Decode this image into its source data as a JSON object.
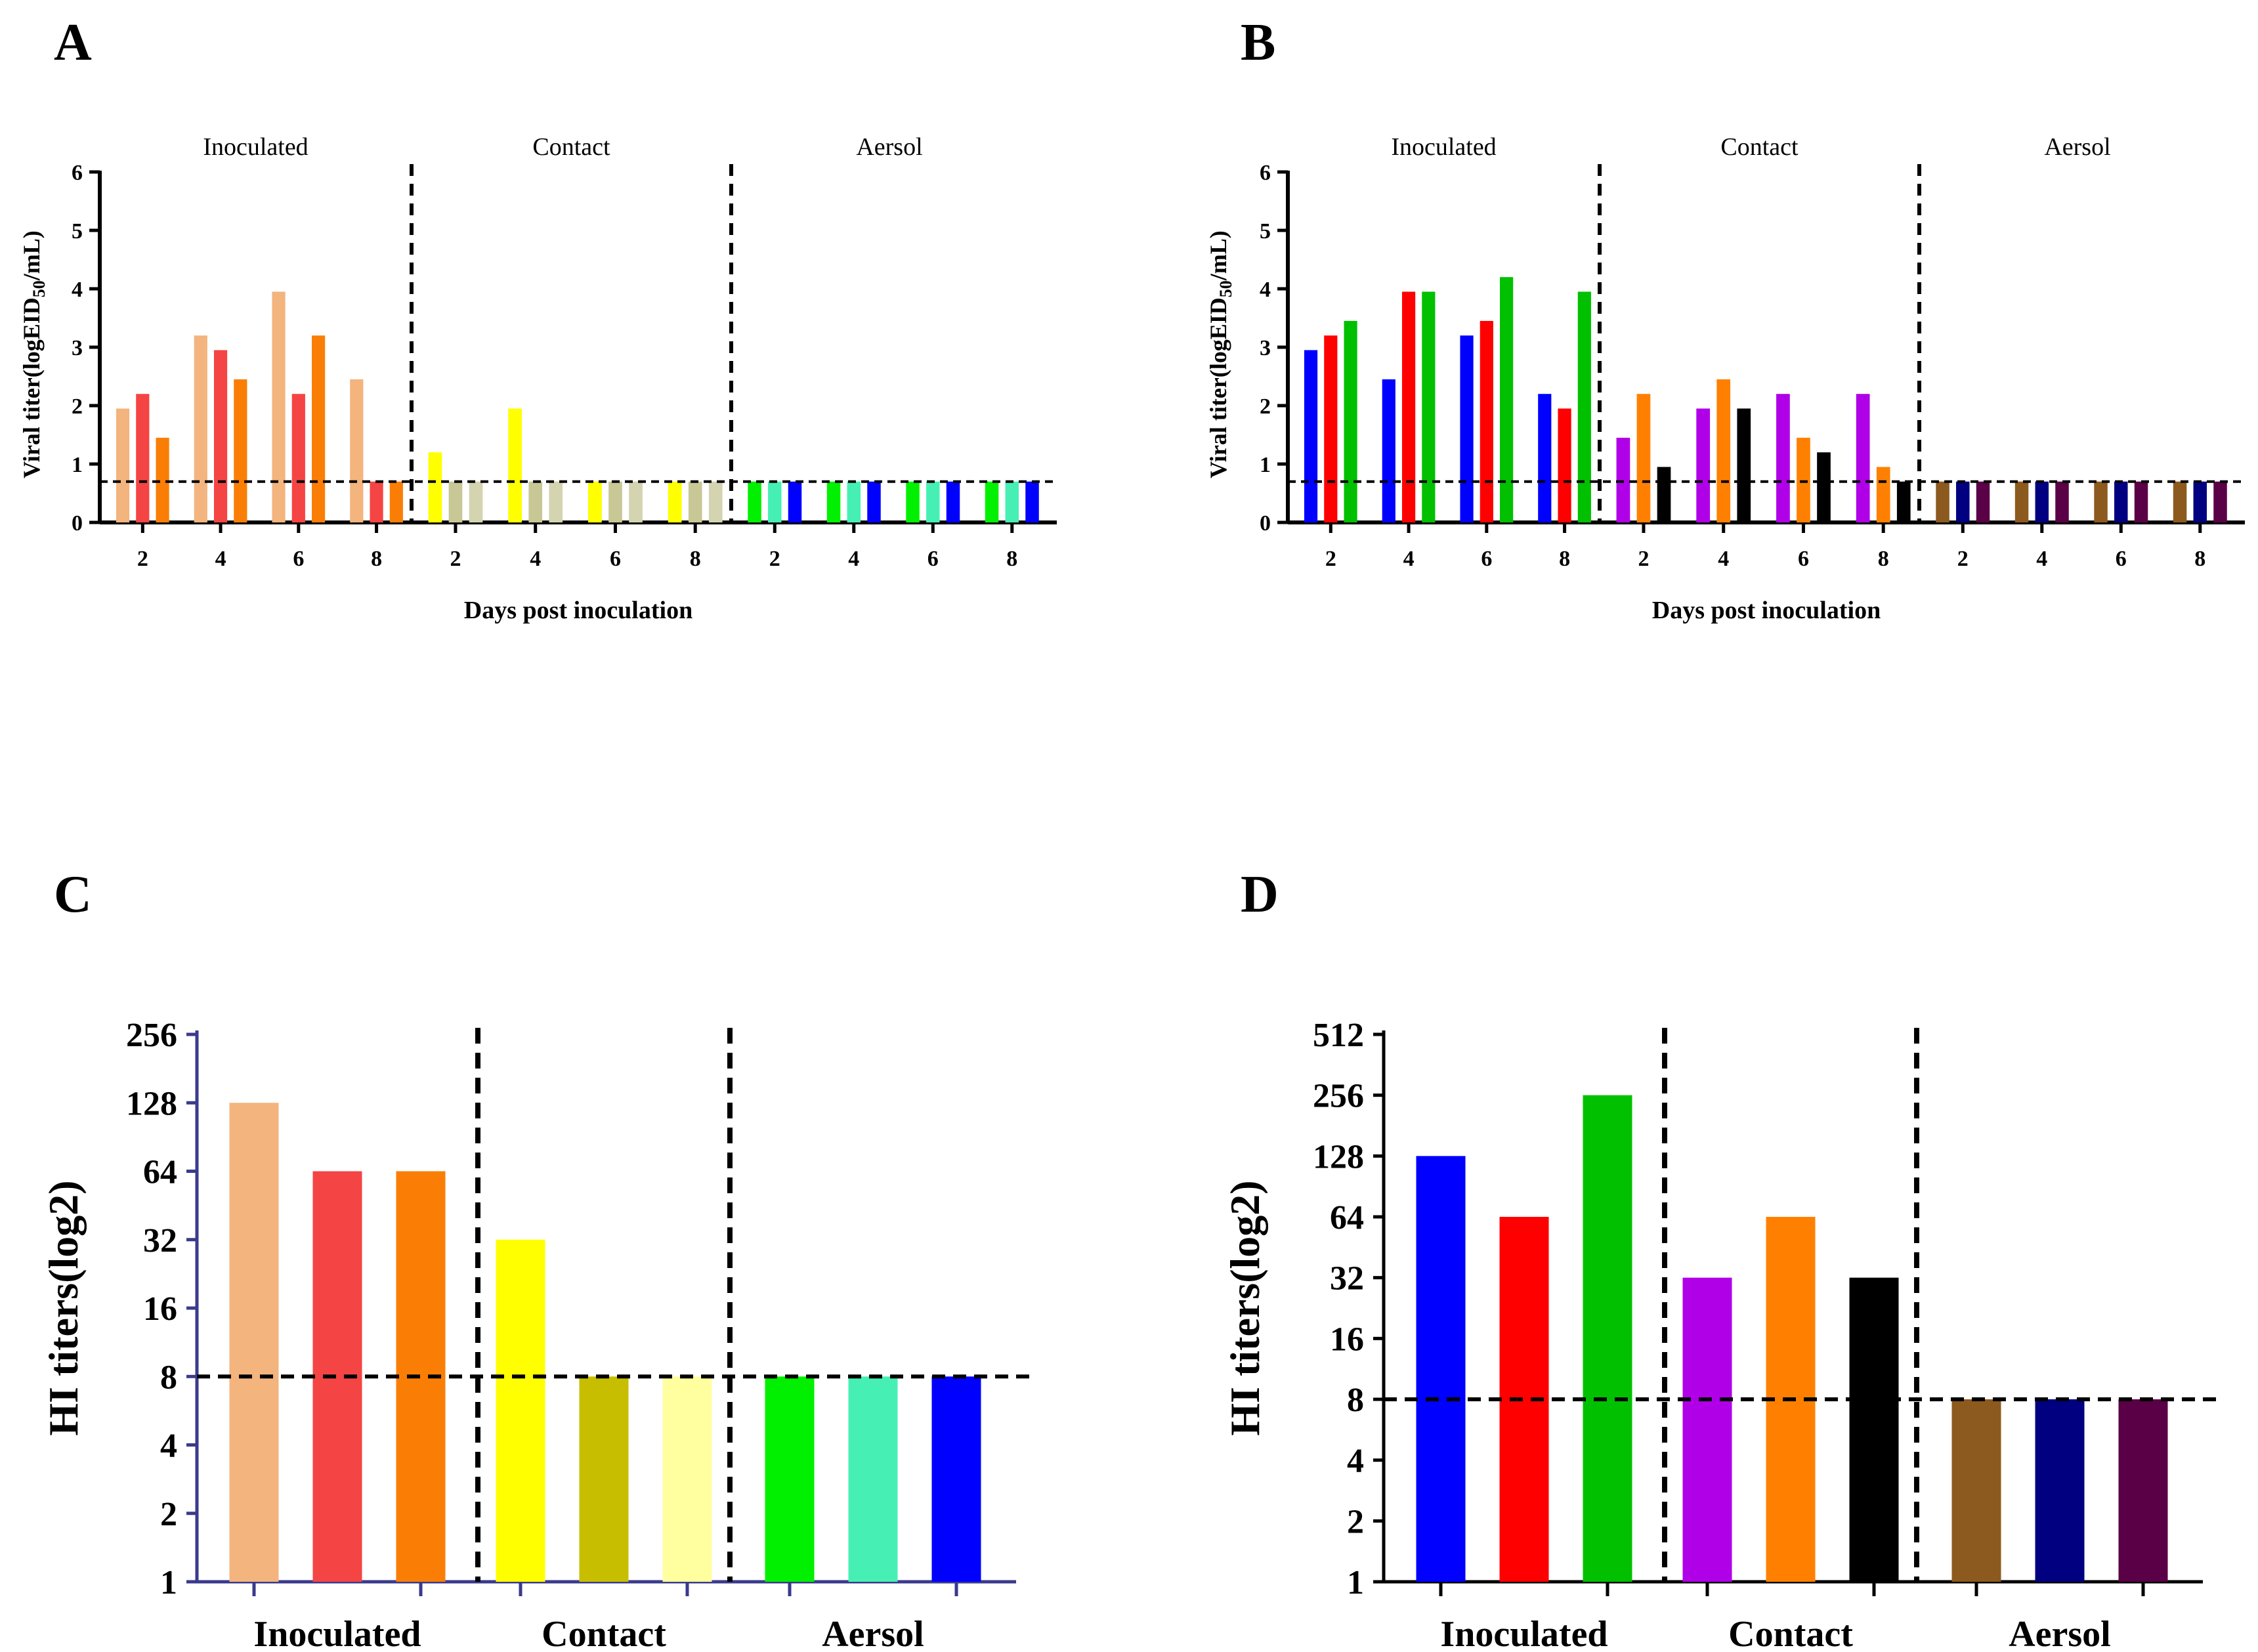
{
  "panel_labels": [
    "A",
    "B",
    "C",
    "D"
  ],
  "chart_data": [
    {
      "id": "A",
      "type": "bar",
      "ylabel": "Viral titer(logEID50/mL)",
      "xlabel": "Days post inoculation",
      "ylim": [
        0,
        6
      ],
      "yticks": [
        "0",
        "1",
        "2",
        "3",
        "4",
        "5",
        "6"
      ],
      "threshold": 0.7,
      "groups": [
        {
          "name": "Inoculated",
          "days": [
            "2",
            "4",
            "6",
            "8"
          ],
          "series": [
            {
              "color": "#F3B47E",
              "values": [
                1.95,
                3.2,
                3.95,
                2.45
              ]
            },
            {
              "color": "#F54444",
              "values": [
                2.2,
                2.95,
                2.2,
                0.7
              ]
            },
            {
              "color": "#FA7E06",
              "values": [
                1.45,
                2.45,
                3.2,
                0.7
              ]
            }
          ]
        },
        {
          "name": "Contact",
          "days": [
            "2",
            "4",
            "6",
            "8"
          ],
          "series": [
            {
              "color": "#FFFF00",
              "values": [
                1.2,
                1.95,
                0.7,
                0.7
              ]
            },
            {
              "color": "#C8C896",
              "values": [
                0.7,
                0.7,
                0.7,
                0.7
              ]
            },
            {
              "color": "#D4D4B0",
              "values": [
                0.7,
                0.7,
                0.7,
                0.7
              ]
            }
          ]
        },
        {
          "name": "Aersol",
          "days": [
            "2",
            "4",
            "6",
            "8"
          ],
          "series": [
            {
              "color": "#00F000",
              "values": [
                0.7,
                0.7,
                0.7,
                0.7
              ]
            },
            {
              "color": "#46F0B4",
              "values": [
                0.7,
                0.7,
                0.7,
                0.7
              ]
            },
            {
              "color": "#0000FF",
              "values": [
                0.7,
                0.7,
                0.7,
                0.7
              ]
            }
          ]
        }
      ]
    },
    {
      "id": "B",
      "type": "bar",
      "ylabel": "Viral titer(logEID50/mL)",
      "xlabel": "Days post inoculation",
      "ylim": [
        0,
        6
      ],
      "yticks": [
        "0",
        "1",
        "2",
        "3",
        "4",
        "5",
        "6"
      ],
      "threshold": 0.7,
      "groups": [
        {
          "name": "Inoculated",
          "days": [
            "2",
            "4",
            "6",
            "8"
          ],
          "series": [
            {
              "color": "#0000FF",
              "values": [
                2.95,
                2.45,
                3.2,
                2.2
              ]
            },
            {
              "color": "#FF0000",
              "values": [
                3.2,
                3.95,
                3.45,
                1.95
              ]
            },
            {
              "color": "#00C000",
              "values": [
                3.45,
                3.95,
                4.2,
                3.95
              ]
            }
          ]
        },
        {
          "name": "Contact",
          "days": [
            "2",
            "4",
            "6",
            "8"
          ],
          "series": [
            {
              "color": "#B000E8",
              "values": [
                1.45,
                1.95,
                2.2,
                2.2
              ]
            },
            {
              "color": "#FF8000",
              "values": [
                2.2,
                2.45,
                1.45,
                0.95
              ]
            },
            {
              "color": "#000000",
              "values": [
                0.95,
                1.95,
                1.2,
                0.7
              ]
            }
          ]
        },
        {
          "name": "Aersol",
          "days": [
            "2",
            "4",
            "6",
            "8"
          ],
          "series": [
            {
              "color": "#8C5A1E",
              "values": [
                0.7,
                0.7,
                0.7,
                0.7
              ]
            },
            {
              "color": "#000080",
              "values": [
                0.7,
                0.7,
                0.7,
                0.7
              ]
            },
            {
              "color": "#5A0046",
              "values": [
                0.7,
                0.7,
                0.7,
                0.7
              ]
            }
          ]
        }
      ]
    },
    {
      "id": "C",
      "type": "bar",
      "ylabel": "HI titers(log2)",
      "yscale": "log2",
      "yticks": [
        "1",
        "2",
        "4",
        "8",
        "16",
        "32",
        "64",
        "128",
        "256"
      ],
      "threshold": 8,
      "axis_color": "#3A3A8C",
      "groups": [
        {
          "name": "Inoculated",
          "values": [
            128,
            64,
            64
          ],
          "colors": [
            "#F3B47E",
            "#F54444",
            "#FA7E06"
          ]
        },
        {
          "name": "Contact",
          "values": [
            32,
            8,
            8
          ],
          "colors": [
            "#FFFF00",
            "#C8BE00",
            "#FFFFA0"
          ]
        },
        {
          "name": "Aersol",
          "values": [
            8,
            8,
            8
          ],
          "colors": [
            "#00F000",
            "#46F0B4",
            "#0000FF"
          ]
        }
      ]
    },
    {
      "id": "D",
      "type": "bar",
      "ylabel": "HI titers(log2)",
      "yscale": "log2",
      "yticks": [
        "1",
        "2",
        "4",
        "8",
        "16",
        "32",
        "64",
        "128",
        "256",
        "512"
      ],
      "threshold": 8,
      "axis_color": "#000000",
      "groups": [
        {
          "name": "Inoculated",
          "values": [
            128,
            64,
            256
          ],
          "colors": [
            "#0000FF",
            "#FF0000",
            "#00C000"
          ]
        },
        {
          "name": "Contact",
          "values": [
            32,
            64,
            32
          ],
          "colors": [
            "#B000E8",
            "#FF8000",
            "#000000"
          ]
        },
        {
          "name": "Aersol",
          "values": [
            8,
            8,
            8
          ],
          "colors": [
            "#8C5A1E",
            "#000080",
            "#5A0046"
          ]
        }
      ]
    }
  ]
}
